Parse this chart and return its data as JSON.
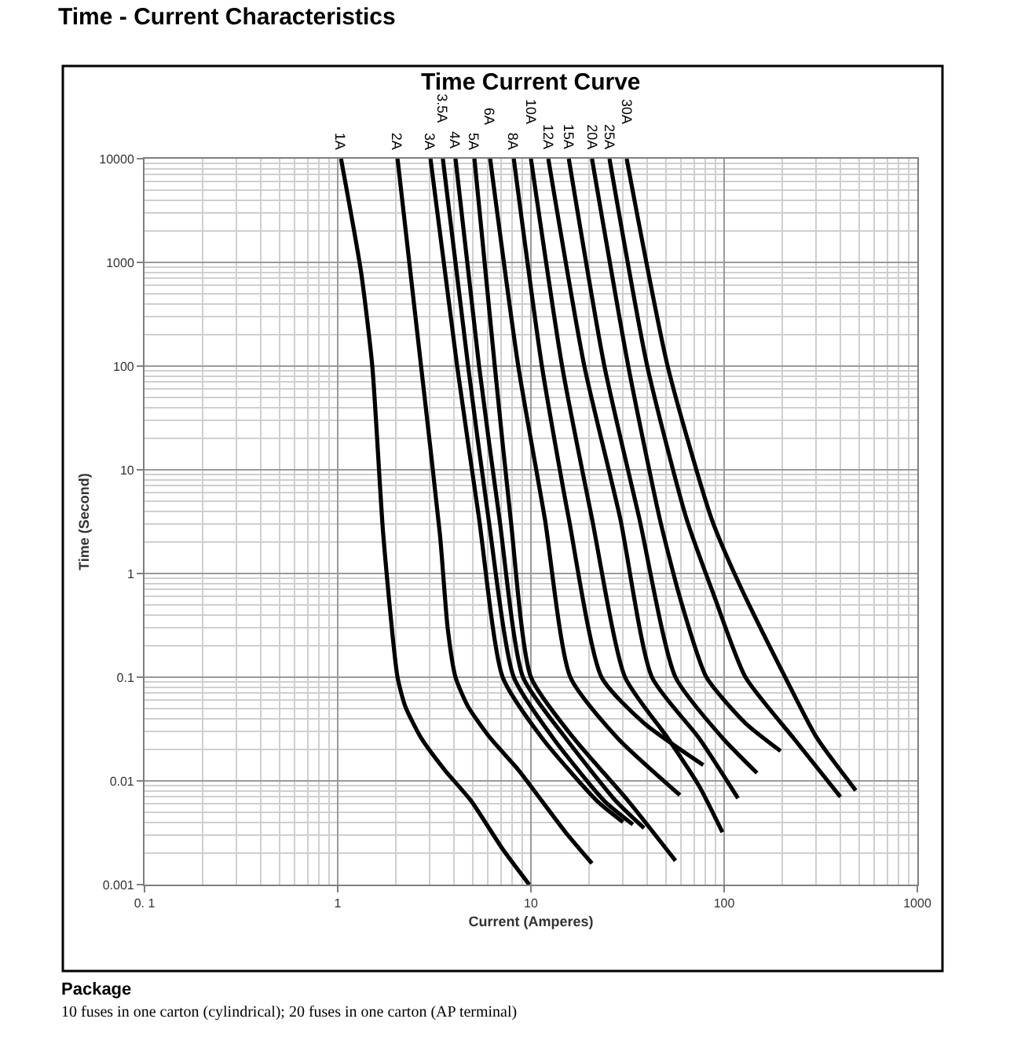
{
  "chart_data": {
    "type": "line",
    "title": "Time - Current Characteristics",
    "subtitle": "Time Current Curve",
    "xlabel": "Current (Amperes)",
    "ylabel": "Time (Second)",
    "log": "xy",
    "grid": true,
    "legend": false,
    "marker": "none",
    "line_style": "solid",
    "xlim": [
      0.1,
      1000
    ],
    "ylim": [
      0.001,
      10000
    ],
    "xticks": [
      {
        "value": 0.1,
        "label": "0. 1"
      },
      1,
      10,
      100,
      1000
    ],
    "yticks": [
      0.001,
      0.01,
      0.1,
      1,
      10,
      100,
      1000,
      10000
    ],
    "annotations": [
      "Package",
      "10 fuses in one carton (cylindrical); 20 fuses in one carton (AP terminal)"
    ],
    "series": [
      {
        "name": "1A",
        "color": "#000000",
        "x": [
          1.04,
          1.32,
          1.51,
          1.72,
          2.04,
          2.24,
          2.7,
          3.57,
          4.91,
          7.14,
          9.8
        ],
        "values": [
          10000,
          812,
          100,
          2.39,
          0.1,
          0.052,
          0.026,
          0.0128,
          0.0064,
          0.0022,
          0.001
        ]
      },
      {
        "name": "2A",
        "color": "#000000",
        "x": [
          2.04,
          2.7,
          3.38,
          3.71,
          4.07,
          4.73,
          6.15,
          8.6,
          11.4,
          15.1,
          20.7
        ],
        "values": [
          10000,
          100,
          2.39,
          0.295,
          0.1,
          0.052,
          0.026,
          0.0128,
          0.0064,
          0.0032,
          0.0016
        ]
      },
      {
        "name": "3A",
        "color": "#000000",
        "x": [
          3.02,
          4.15,
          5.39,
          7.14,
          11.4,
          22,
          30
        ],
        "values": [
          10000,
          100,
          3.39,
          0.1,
          0.026,
          0.0064,
          0.004
        ]
      },
      {
        "name": "3.5A",
        "color": "#000000",
        "x": [
          3.5,
          4.73,
          6.03,
          8.15,
          13,
          24,
          33.7
        ],
        "values": [
          10000,
          100,
          3.39,
          0.1,
          0.026,
          0.0064,
          0.0038
        ]
      },
      {
        "name": "4A",
        "color": "#000000",
        "x": [
          4.07,
          5.39,
          6.87,
          9.1,
          15.1,
          27.5,
          38.5
        ],
        "values": [
          10000,
          100,
          3.39,
          0.1,
          0.026,
          0.0064,
          0.0035
        ]
      },
      {
        "name": "5A",
        "color": "#000000",
        "x": [
          5.1,
          6.5,
          7.85,
          10,
          16.6,
          31.9,
          56
        ],
        "values": [
          10000,
          100,
          3.39,
          0.1,
          0.026,
          0.0064,
          0.0017
        ]
      },
      {
        "name": "6A",
        "color": "#000000",
        "x": [
          6.15,
          8.6,
          11.8,
          16,
          28,
          59
        ],
        "values": [
          10000,
          100,
          3.39,
          0.1,
          0.026,
          0.0073
        ]
      },
      {
        "name": "8A",
        "color": "#000000",
        "x": [
          8.15,
          11.4,
          15.7,
          23.2,
          38.5,
          78
        ],
        "values": [
          10000,
          100,
          3.39,
          0.1,
          0.036,
          0.0142
        ]
      },
      {
        "name": "10A",
        "color": "#000000",
        "x": [
          10,
          14.5,
          20.7,
          30.7,
          51,
          74,
          98
        ],
        "values": [
          10000,
          100,
          3.39,
          0.1,
          0.026,
          0.009,
          0.0032
        ]
      },
      {
        "name": "12A",
        "color": "#000000",
        "x": [
          12.3,
          18.9,
          29,
          42.3,
          74,
          118
        ],
        "values": [
          10000,
          100,
          3.39,
          0.1,
          0.026,
          0.0068
        ]
      },
      {
        "name": "15A",
        "color": "#000000",
        "x": [
          15.7,
          24,
          36.4,
          56,
          98,
          148
        ],
        "values": [
          10000,
          100,
          3.39,
          0.1,
          0.026,
          0.0119
        ]
      },
      {
        "name": "20A",
        "color": "#000000",
        "x": [
          20.7,
          31.9,
          46.4,
          59,
          81,
          129,
          196
        ],
        "values": [
          10000,
          100,
          3.39,
          0.59,
          0.1,
          0.036,
          0.0194
        ]
      },
      {
        "name": "25A",
        "color": "#000000",
        "x": [
          25.5,
          40,
          63.8,
          89.3,
          129,
          228,
          400
        ],
        "values": [
          10000,
          100,
          3.39,
          0.59,
          0.1,
          0.026,
          0.007
        ]
      },
      {
        "name": "30A",
        "color": "#000000",
        "x": [
          31.3,
          51,
          86,
          118,
          207,
          302,
          480
        ],
        "values": [
          10000,
          100,
          3.39,
          0.84,
          0.1,
          0.026,
          0.0081
        ]
      }
    ]
  }
}
